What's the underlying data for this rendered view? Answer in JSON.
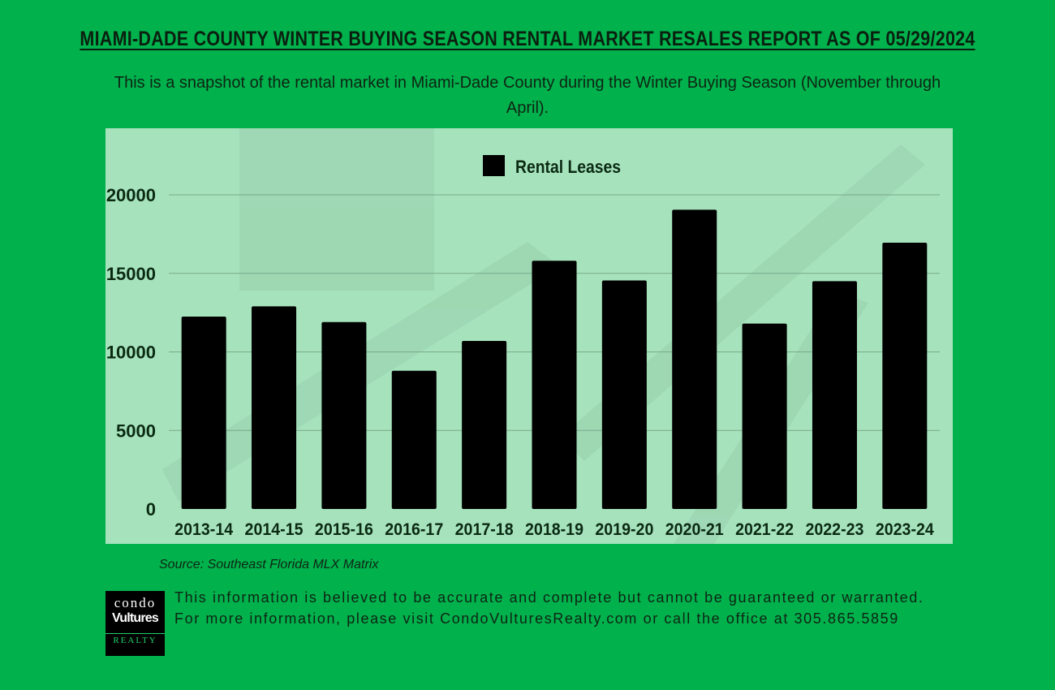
{
  "header": {
    "title": "MIAMI-DADE COUNTY WINTER BUYING SEASON RENTAL MARKET RESALES REPORT AS OF 05/29/2024",
    "subtitle": "This is a snapshot of the rental market in Miami-Dade County during the Winter Buying Season (November through April)."
  },
  "chart_data": {
    "type": "bar",
    "title": "",
    "xlabel": "",
    "ylabel": "",
    "categories": [
      "2013-14",
      "2014-15",
      "2015-16",
      "2016-17",
      "2017-18",
      "2018-19",
      "2019-20",
      "2020-21",
      "2021-22",
      "2022-23",
      "2023-24"
    ],
    "series": [
      {
        "name": "Rental Leases",
        "values": [
          12250,
          12900,
          11900,
          8800,
          10700,
          15800,
          14550,
          19050,
          11800,
          14500,
          16950
        ]
      }
    ],
    "ylim": [
      0,
      20000
    ],
    "yticks": [
      0,
      5000,
      10000,
      15000,
      20000
    ],
    "grid": true,
    "legend_position": "top-center",
    "colors": {
      "bar": "#000000",
      "panel": "#a6e3bd",
      "background": "#00b14c",
      "gridline": "#7aa98a",
      "label": "#0b2a12"
    }
  },
  "footer": {
    "source": "Source: Southeast Florida MLX Matrix",
    "logo": {
      "line1": "condo",
      "line2": "Vultures",
      "line3": "REALTY"
    },
    "disclaimer": "This information is believed to be accurate and complete but cannot be guaranteed or warranted. For more information, please visit CondoVulturesRealty.com or call the office at 305.865.5859"
  }
}
